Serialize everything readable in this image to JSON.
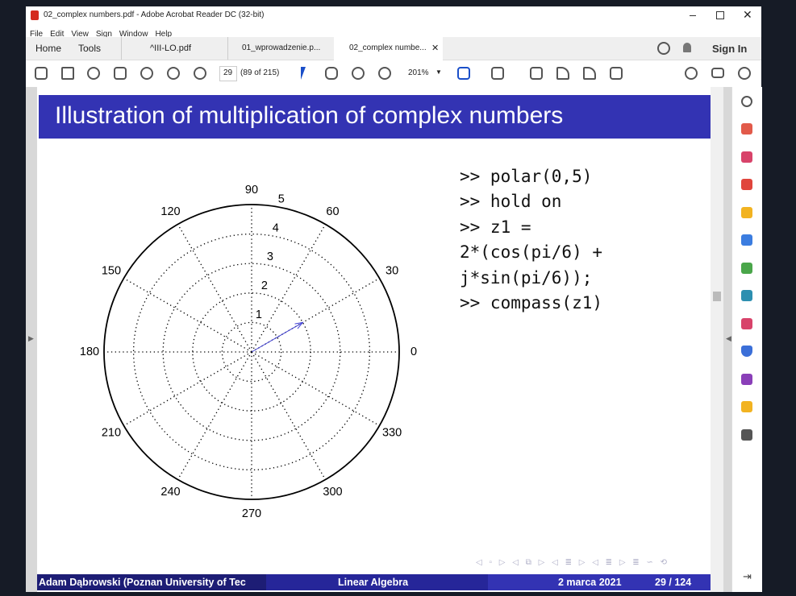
{
  "window": {
    "title": "02_complex numbers.pdf - Adobe Acrobat Reader DC (32-bit)",
    "menu": [
      "File",
      "Edit",
      "View",
      "Sign",
      "Window",
      "Help"
    ]
  },
  "tabs": {
    "nav": [
      "Home",
      "Tools"
    ],
    "documents": [
      "^III-LO.pdf",
      "01_wprowadzenie.p...",
      "02_complex numbe..."
    ],
    "sign_in": "Sign In"
  },
  "toolbar": {
    "page": "29",
    "page_of": "(89 of 215)",
    "zoom": "201%"
  },
  "slide": {
    "title": "Illustration of multiplication of complex numbers",
    "code": [
      ">> polar(0,5)",
      ">> hold on",
      ">> z1 =",
      "2*(cos(pi/6) +",
      "j*sin(pi/6));",
      ">> compass(z1)"
    ],
    "plot": {
      "type": "polar",
      "rlim": [
        0,
        5
      ],
      "rticks": [
        1,
        2,
        3,
        4,
        5
      ],
      "thetaticks": [
        0,
        30,
        60,
        90,
        120,
        150,
        180,
        210,
        240,
        270,
        300,
        330
      ],
      "vector": {
        "r": 2,
        "theta": 30
      },
      "color": "#3f3fd6"
    },
    "footer": {
      "author": "Adam Dąbrowski (Poznan University of Tec",
      "course": "Linear Algebra",
      "date": "2 marca 2021",
      "page": "29 / 124"
    }
  }
}
